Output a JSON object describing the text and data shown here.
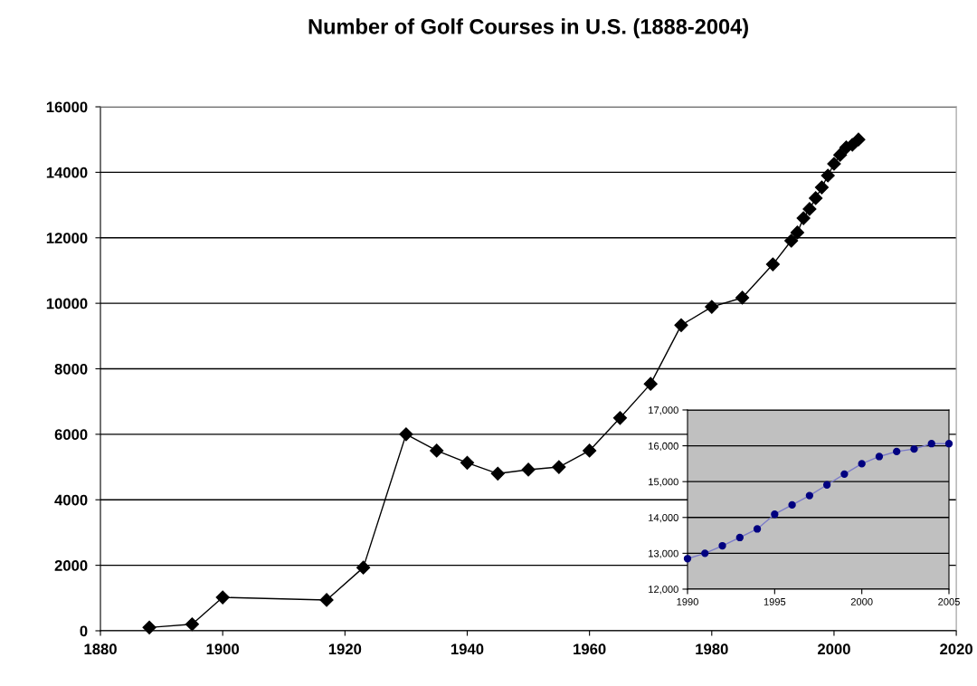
{
  "chart_data": [
    {
      "type": "line",
      "title": "Number of Golf Courses in U.S. (1888-2004)",
      "x": [
        1888,
        1895,
        1900,
        1917,
        1923,
        1930,
        1935,
        1940,
        1945,
        1950,
        1955,
        1960,
        1965,
        1970,
        1975,
        1980,
        1985,
        1990,
        1993,
        1994,
        1995,
        1996,
        1997,
        1998,
        1999,
        2000,
        2001,
        2002,
        2003,
        2004
      ],
      "series": [
        {
          "color": "#000000",
          "values": [
            100,
            200,
            1020,
            940,
            1930,
            6000,
            5500,
            5130,
            4800,
            4920,
            5000,
            5500,
            6500,
            7540,
            9330,
            9890,
            10170,
            11190,
            11910,
            12160,
            12600,
            12880,
            13210,
            13540,
            13900,
            14260,
            14530,
            14760,
            14840,
            15000
          ]
        }
      ],
      "xlim": [
        1880,
        2020
      ],
      "xticks": [
        1880,
        1900,
        1920,
        1940,
        1960,
        1980,
        2000,
        2020
      ],
      "ylim": [
        0,
        16000
      ],
      "yticks": [
        0,
        2000,
        4000,
        6000,
        8000,
        10000,
        12000,
        14000,
        16000
      ],
      "grid": "y",
      "marker": "diamond",
      "line_style": "solid"
    },
    {
      "type": "line",
      "x": [
        1990,
        1991,
        1992,
        1993,
        1994,
        1995,
        1996,
        1997,
        1998,
        1999,
        2000,
        2001,
        2002,
        2003,
        2004,
        2005
      ],
      "series": [
        {
          "color": "#000080",
          "values": [
            12850,
            13000,
            13210,
            13440,
            13680,
            14090,
            14350,
            14610,
            14910,
            15210,
            15500,
            15700,
            15840,
            15910,
            16060,
            16060
          ]
        }
      ],
      "xlim": [
        1990,
        2005
      ],
      "xticks": [
        1990,
        1995,
        2000,
        2005
      ],
      "ylim": [
        12000,
        17000
      ],
      "yticks": [
        {
          "value": 12000,
          "label": "12,000"
        },
        {
          "value": 13000,
          "label": "13,000"
        },
        {
          "value": 14000,
          "label": "14,000"
        },
        {
          "value": 15000,
          "label": "15,000"
        },
        {
          "value": 16000,
          "label": "16,000"
        },
        {
          "value": 17000,
          "label": "17,000"
        }
      ],
      "grid": "y",
      "marker": "circle",
      "line_style": "solid"
    }
  ]
}
